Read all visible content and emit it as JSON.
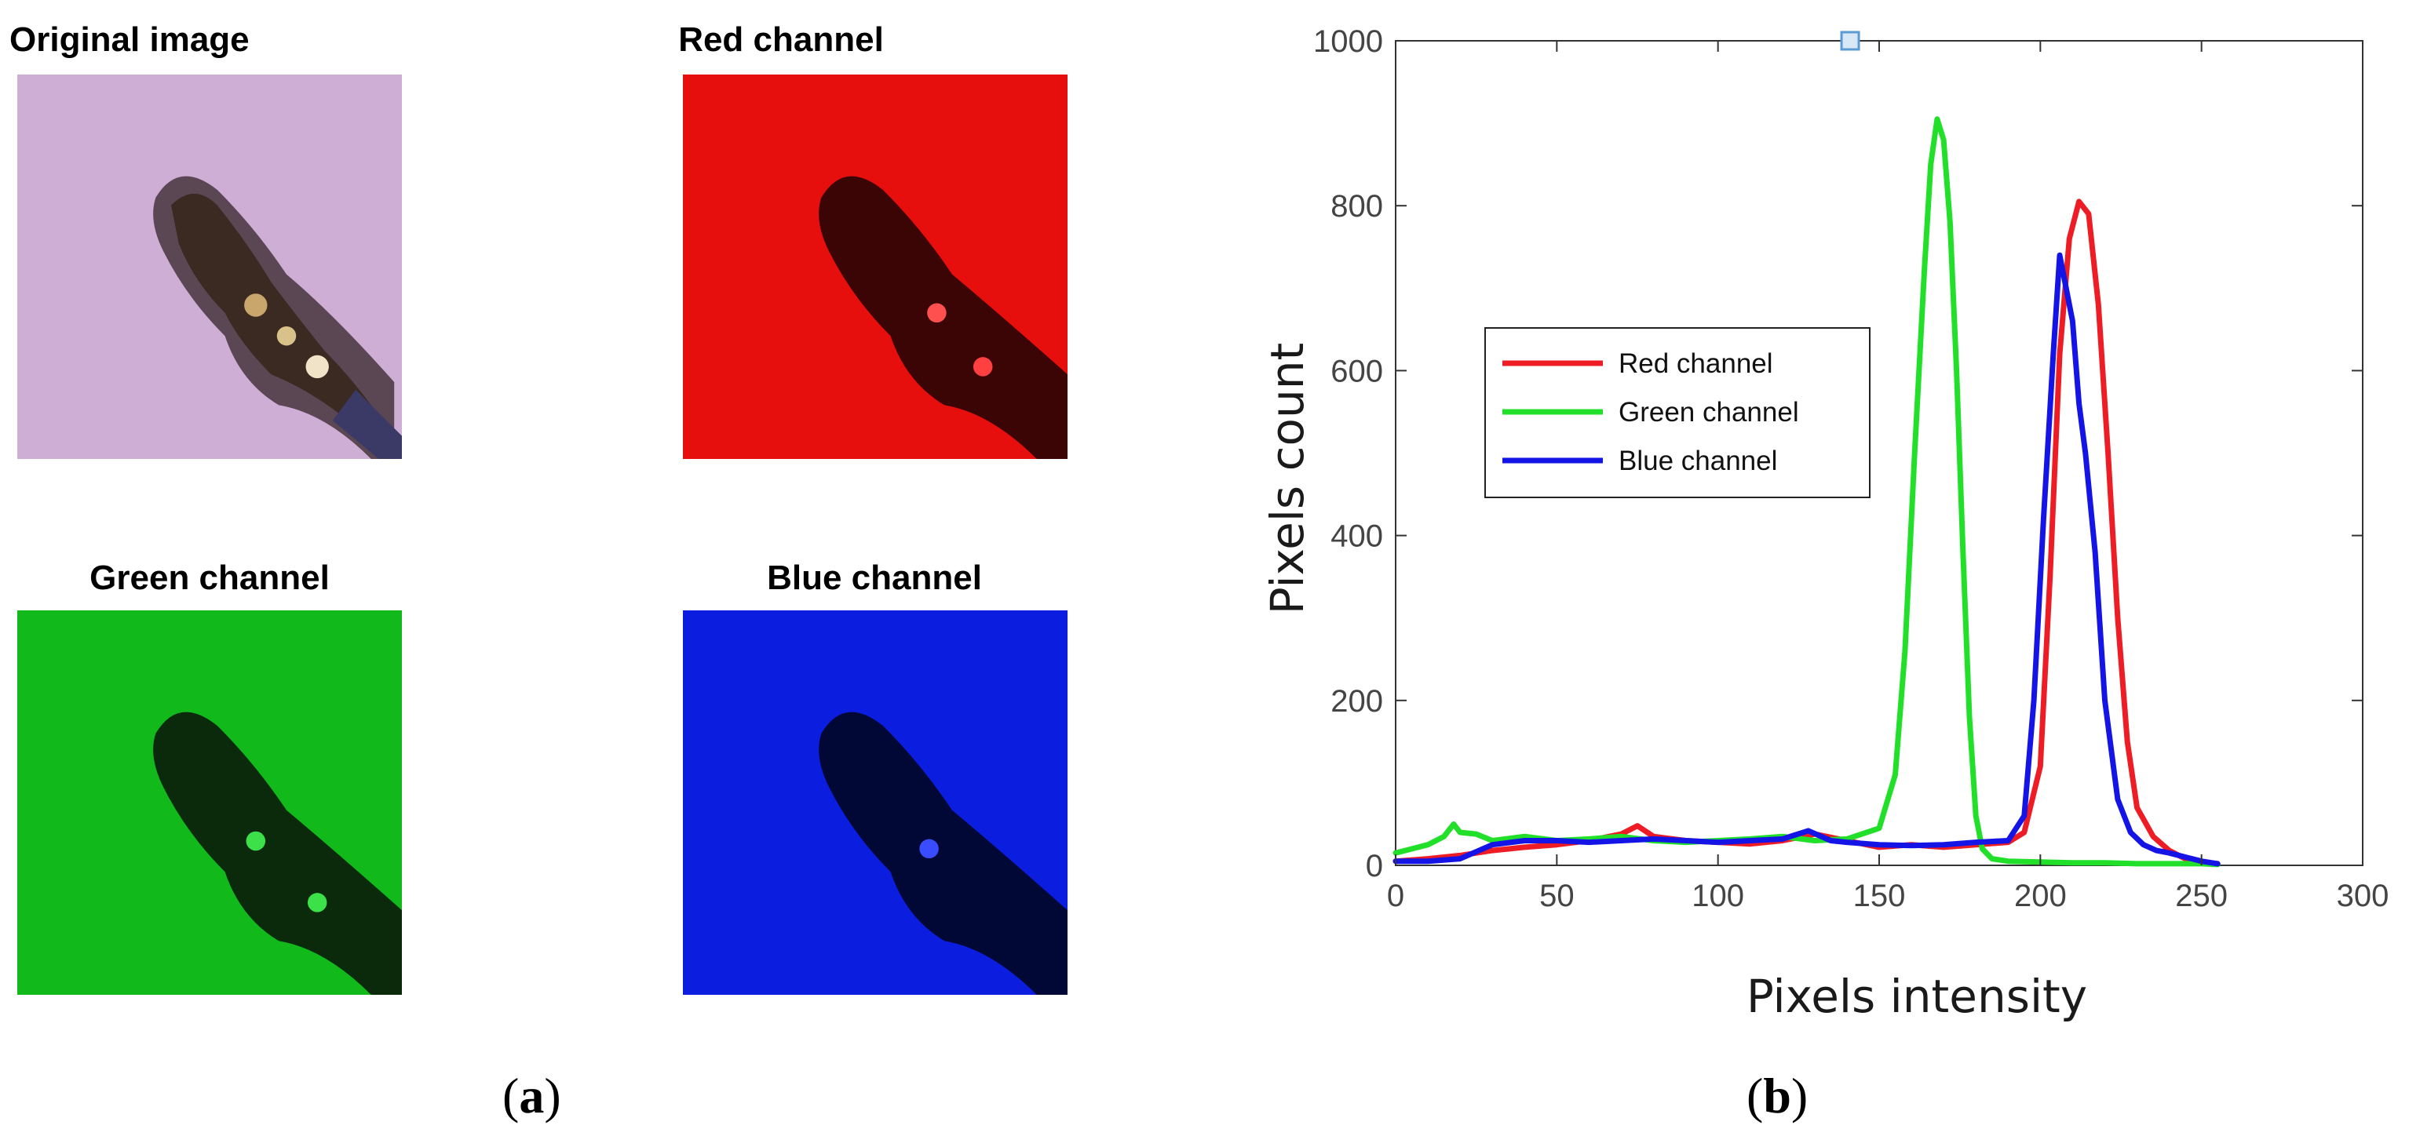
{
  "panel_a": {
    "titles": {
      "original": "Original image",
      "red": "Red channel",
      "green": "Green channel",
      "blue": "Blue channel"
    },
    "thumb_colors": {
      "original_bg": "#cfaed6",
      "red_bg": "#e60f0d",
      "green_bg": "#12b91a",
      "blue_bg": "#0b1ee0"
    },
    "caption_open": "(",
    "caption_letter": "a",
    "caption_close": ")"
  },
  "panel_b": {
    "caption_open": "(",
    "caption_letter": "b",
    "caption_close": ")"
  },
  "chart_data": {
    "type": "line",
    "xlabel": "Pixels intensity",
    "ylabel": "Pixels count",
    "xlim": [
      0,
      300
    ],
    "ylim": [
      0,
      1000
    ],
    "xticks": [
      0,
      50,
      100,
      150,
      200,
      250,
      300
    ],
    "yticks": [
      0,
      200,
      400,
      600,
      800,
      1000
    ],
    "grid": false,
    "legend_position": "left",
    "marker_point": {
      "x": 141,
      "y": 1000,
      "color": "#5a9bd4"
    },
    "series": [
      {
        "name": "Red channel",
        "color": "#ee1c24",
        "x": [
          0,
          10,
          20,
          30,
          40,
          50,
          60,
          70,
          75,
          80,
          90,
          100,
          110,
          120,
          130,
          140,
          150,
          160,
          170,
          180,
          190,
          195,
          200,
          203,
          206,
          209,
          212,
          215,
          218,
          221,
          224,
          227,
          230,
          235,
          240,
          245,
          250,
          255
        ],
        "y": [
          5,
          8,
          12,
          18,
          22,
          25,
          30,
          38,
          48,
          35,
          30,
          28,
          26,
          30,
          38,
          30,
          22,
          25,
          22,
          25,
          28,
          40,
          120,
          350,
          620,
          760,
          805,
          790,
          680,
          500,
          300,
          150,
          70,
          35,
          18,
          8,
          4,
          2
        ]
      },
      {
        "name": "Green channel",
        "color": "#22e02a",
        "x": [
          0,
          5,
          10,
          15,
          18,
          20,
          25,
          30,
          40,
          50,
          60,
          70,
          80,
          90,
          100,
          110,
          120,
          130,
          140,
          150,
          155,
          158,
          161,
          164,
          166,
          168,
          170,
          172,
          174,
          176,
          178,
          180,
          182,
          185,
          190,
          200,
          210,
          220,
          230,
          240,
          250,
          255
        ],
        "y": [
          15,
          20,
          25,
          35,
          50,
          40,
          38,
          30,
          35,
          30,
          32,
          35,
          30,
          28,
          30,
          32,
          35,
          30,
          32,
          45,
          110,
          260,
          500,
          720,
          850,
          905,
          880,
          780,
          600,
          380,
          180,
          60,
          20,
          8,
          5,
          4,
          3,
          3,
          2,
          2,
          2,
          1
        ]
      },
      {
        "name": "Blue channel",
        "color": "#1414e6",
        "x": [
          0,
          10,
          20,
          30,
          40,
          50,
          60,
          70,
          80,
          90,
          100,
          110,
          120,
          128,
          135,
          140,
          150,
          160,
          170,
          180,
          190,
          195,
          198,
          201,
          204,
          206,
          208,
          210,
          212,
          214,
          217,
          220,
          224,
          228,
          232,
          236,
          240,
          245,
          250,
          255
        ],
        "y": [
          5,
          5,
          8,
          25,
          30,
          30,
          28,
          30,
          32,
          30,
          28,
          30,
          32,
          42,
          30,
          28,
          25,
          24,
          25,
          28,
          30,
          60,
          200,
          420,
          620,
          740,
          700,
          660,
          560,
          500,
          380,
          200,
          80,
          40,
          25,
          18,
          15,
          10,
          5,
          2
        ]
      }
    ]
  }
}
